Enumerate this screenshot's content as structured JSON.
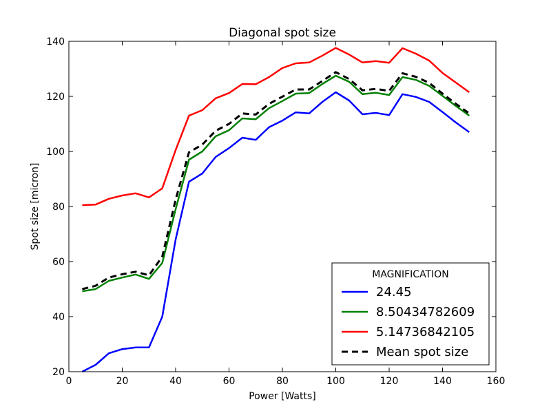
{
  "chart_data": {
    "type": "line",
    "title": "Diagonal spot size",
    "xlabel": "Power [Watts]",
    "ylabel": "Spot size [micron]",
    "xlim": [
      0,
      160
    ],
    "ylim": [
      20,
      140
    ],
    "xticks": [
      0,
      20,
      40,
      60,
      80,
      100,
      120,
      140,
      160
    ],
    "yticks": [
      20,
      40,
      60,
      80,
      100,
      120,
      140
    ],
    "grid": false,
    "legend": {
      "title": "MAGNIFICATION",
      "placement": "lower-right"
    },
    "x": [
      5,
      10,
      15,
      20,
      25,
      30,
      35,
      40,
      45,
      50,
      55,
      60,
      65,
      70,
      75,
      80,
      85,
      90,
      95,
      100,
      105,
      110,
      115,
      120,
      125,
      130,
      135,
      140,
      145,
      150
    ],
    "series": [
      {
        "name": "24.45",
        "color": "#0000ff",
        "style": "solid",
        "values": [
          20.0,
          22.5,
          26.7,
          28.2,
          28.8,
          28.8,
          40.0,
          68.0,
          89.0,
          92.0,
          98.0,
          101.2,
          105.0,
          104.2,
          108.8,
          111.2,
          114.2,
          113.8,
          118.0,
          121.5,
          118.5,
          113.5,
          114.0,
          113.2,
          120.8,
          119.8,
          118.0,
          114.3,
          110.5,
          107.0
        ]
      },
      {
        "name": "8.50434782609",
        "color": "#008000",
        "style": "solid",
        "values": [
          49.2,
          50.0,
          53.0,
          54.2,
          55.3,
          53.7,
          59.5,
          79.0,
          97.0,
          100.0,
          105.5,
          107.7,
          112.0,
          111.7,
          115.7,
          118.3,
          121.0,
          121.2,
          124.5,
          127.5,
          125.3,
          120.8,
          121.3,
          120.5,
          127.0,
          126.0,
          123.8,
          120.2,
          116.5,
          113.0
        ]
      },
      {
        "name": "5.14736842105",
        "color": "#ff0000",
        "style": "solid",
        "values": [
          80.5,
          80.7,
          82.8,
          84.0,
          84.8,
          83.3,
          86.6,
          100.5,
          113.0,
          115.0,
          119.3,
          121.2,
          124.5,
          124.4,
          127.0,
          130.3,
          132.0,
          132.3,
          134.8,
          137.6,
          135.2,
          132.3,
          132.8,
          132.2,
          137.5,
          135.5,
          133.0,
          128.5,
          125.0,
          121.5
        ]
      },
      {
        "name": "Mean spot size",
        "color": "#000000",
        "style": "dashed",
        "values": [
          50.0,
          51.2,
          54.2,
          55.4,
          56.3,
          55.0,
          61.8,
          82.5,
          99.7,
          102.5,
          107.5,
          110.0,
          113.8,
          113.4,
          117.3,
          119.9,
          122.5,
          122.5,
          125.6,
          128.8,
          126.3,
          122.2,
          122.7,
          122.0,
          128.4,
          127.1,
          124.9,
          121.0,
          117.3,
          113.8
        ]
      }
    ]
  }
}
